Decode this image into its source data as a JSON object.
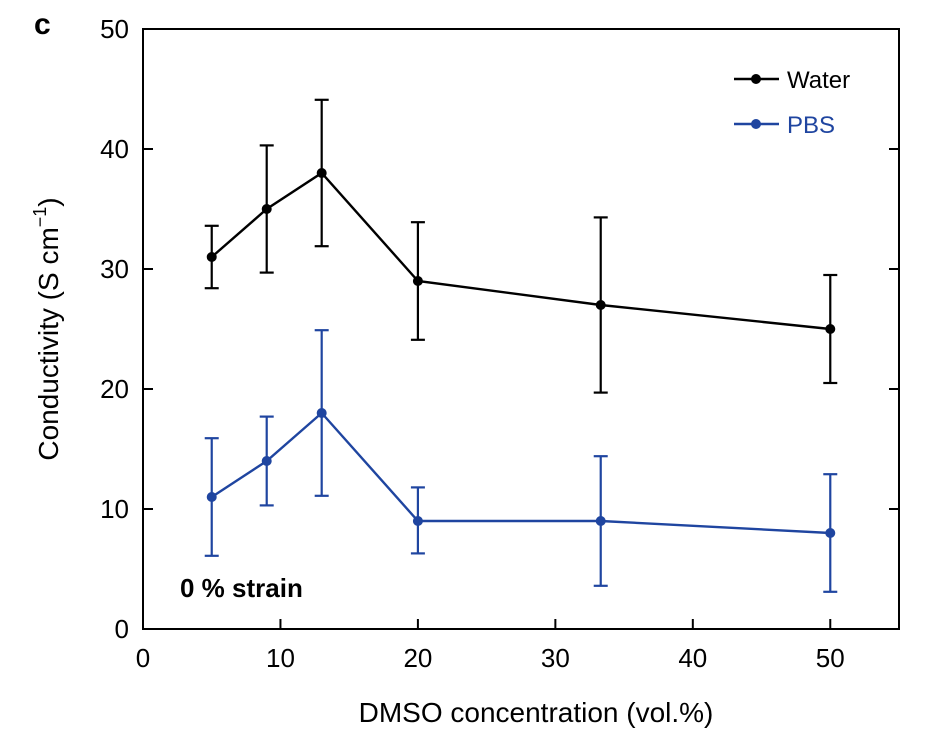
{
  "panel_label": "c",
  "chart_data": {
    "type": "line",
    "xlabel": "DMSO concentration (vol.%)",
    "ylabel": "Conductivity (S cm",
    "ylabel_superscript": "−1",
    "ylabel_close": ")",
    "xlim": [
      0,
      55
    ],
    "ylim": [
      0,
      50
    ],
    "xticks": [
      0,
      10,
      20,
      30,
      40,
      50
    ],
    "yticks": [
      0,
      10,
      20,
      30,
      40,
      50
    ],
    "xtick_labels": [
      "0",
      "10",
      "20",
      "30",
      "40",
      "50"
    ],
    "ytick_labels": [
      "0",
      "10",
      "20",
      "30",
      "40",
      "50"
    ],
    "grid": false,
    "legend_position": "top-right",
    "annotation": "0 % strain",
    "series": [
      {
        "name": "Water",
        "color": "#000000",
        "x": [
          5,
          9,
          13,
          20,
          33.3,
          50
        ],
        "y": [
          31,
          35,
          38,
          29,
          27,
          25
        ],
        "err_low": [
          2.6,
          5.3,
          6.1,
          4.9,
          7.3,
          4.5
        ],
        "err_high": [
          2.6,
          5.3,
          6.1,
          4.9,
          7.3,
          4.5
        ]
      },
      {
        "name": "PBS",
        "color": "#1f45a0",
        "x": [
          5,
          9,
          13,
          20,
          33.3,
          50
        ],
        "y": [
          11,
          14,
          18,
          9,
          9,
          8
        ],
        "err_low": [
          4.9,
          3.7,
          6.9,
          2.7,
          5.4,
          4.9
        ],
        "err_high": [
          4.9,
          3.7,
          6.9,
          2.8,
          5.4,
          4.9
        ]
      }
    ]
  }
}
